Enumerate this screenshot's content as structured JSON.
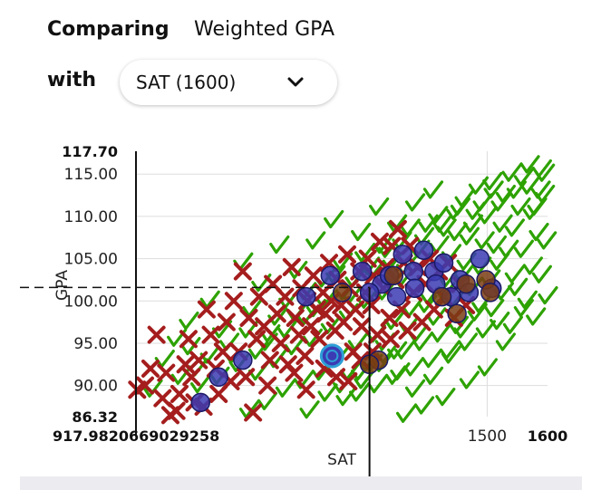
{
  "header": {
    "comparing_label": "Comparing",
    "metric_label": "Weighted GPA",
    "with_label": "with",
    "select_value": "SAT (1600)",
    "select_icon": "chevron-down-icon"
  },
  "chart_data": {
    "type": "scatter",
    "xlabel": "SAT",
    "ylabel": "GPA",
    "xlim": [
      917.9820669029258,
      1600
    ],
    "ylim": [
      86.32,
      117.7
    ],
    "x_edge_labels": [
      "917.9820669029258",
      "1600"
    ],
    "x_ticks": [
      "1500"
    ],
    "y_edge_labels": [
      "86.32",
      "117.70"
    ],
    "y_ticks": [
      "90.00",
      "95.00",
      "100.00",
      "105.00",
      "110.00",
      "115.00"
    ],
    "crosshair": {
      "x": 1305,
      "y": 101.6
    },
    "colors": {
      "accepted": "#2da200",
      "rejected": "#a51d1d",
      "waitlisted": "#3b3bb3",
      "other": "#7a3c14",
      "you": "#2e9fd6"
    },
    "rejected_points": [
      [
        920,
        89.5
      ],
      [
        933,
        90.0
      ],
      [
        942,
        92.0
      ],
      [
        952,
        96.0
      ],
      [
        962,
        88.5
      ],
      [
        968,
        91.5
      ],
      [
        975,
        86.5
      ],
      [
        985,
        87.0
      ],
      [
        990,
        89.0
      ],
      [
        1000,
        92.5
      ],
      [
        1005,
        95.5
      ],
      [
        1010,
        91.0
      ],
      [
        1015,
        88.0
      ],
      [
        1022,
        93.0
      ],
      [
        1030,
        87.5
      ],
      [
        1035,
        99.0
      ],
      [
        1042,
        96.0
      ],
      [
        1050,
        92.0
      ],
      [
        1055,
        89.0
      ],
      [
        1062,
        94.0
      ],
      [
        1068,
        97.5
      ],
      [
        1075,
        90.5
      ],
      [
        1080,
        100.0
      ],
      [
        1088,
        94.0
      ],
      [
        1095,
        103.5
      ],
      [
        1100,
        91.0
      ],
      [
        1105,
        98.0
      ],
      [
        1112,
        86.8
      ],
      [
        1118,
        95.5
      ],
      [
        1122,
        100.5
      ],
      [
        1130,
        97.0
      ],
      [
        1136,
        90.0
      ],
      [
        1140,
        93.0
      ],
      [
        1145,
        102.0
      ],
      [
        1152,
        98.5
      ],
      [
        1158,
        95.0
      ],
      [
        1165,
        100.5
      ],
      [
        1170,
        92.5
      ],
      [
        1176,
        104.0
      ],
      [
        1182,
        98.0
      ],
      [
        1188,
        96.0
      ],
      [
        1192,
        101.5
      ],
      [
        1198,
        93.5
      ],
      [
        1202,
        100.0
      ],
      [
        1208,
        97.0
      ],
      [
        1212,
        103.0
      ],
      [
        1218,
        99.0
      ],
      [
        1222,
        95.5
      ],
      [
        1228,
        101.0
      ],
      [
        1232,
        98.5
      ],
      [
        1238,
        104.5
      ],
      [
        1242,
        100.0
      ],
      [
        1248,
        96.5
      ],
      [
        1252,
        102.5
      ],
      [
        1258,
        99.5
      ],
      [
        1262,
        97.5
      ],
      [
        1268,
        105.5
      ],
      [
        1272,
        101.5
      ],
      [
        1278,
        94.0
      ],
      [
        1282,
        99.0
      ],
      [
        1288,
        103.5
      ],
      [
        1292,
        97.0
      ],
      [
        1298,
        101.0
      ],
      [
        1302,
        105.0
      ],
      [
        1308,
        99.5
      ],
      [
        1312,
        103.0
      ],
      [
        1318,
        96.0
      ],
      [
        1322,
        107.0
      ],
      [
        1328,
        101.5
      ],
      [
        1332,
        104.0
      ],
      [
        1338,
        98.0
      ],
      [
        1342,
        106.5
      ],
      [
        1348,
        102.5
      ],
      [
        1352,
        108.5
      ],
      [
        1358,
        99.0
      ],
      [
        1362,
        104.5
      ],
      [
        1368,
        96.5
      ],
      [
        1372,
        106.5
      ],
      [
        1378,
        101.0
      ],
      [
        1385,
        104.0
      ],
      [
        1392,
        97.5
      ],
      [
        1398,
        102.0
      ],
      [
        1405,
        105.0
      ],
      [
        1412,
        99.0
      ],
      [
        1420,
        103.5
      ],
      [
        1428,
        100.5
      ],
      [
        1435,
        104.5
      ],
      [
        1445,
        98.0
      ],
      [
        1455,
        102.0
      ],
      [
        1465,
        99.5
      ],
      [
        1250,
        91.0
      ],
      [
        1270,
        90.5
      ],
      [
        1230,
        92.0
      ],
      [
        1290,
        93.0
      ],
      [
        1310,
        94.0
      ],
      [
        1200,
        89.5
      ],
      [
        1340,
        95.5
      ],
      [
        1180,
        91.5
      ]
    ],
    "accepted_points": [
      [
        945,
        89.5
      ],
      [
        965,
        93.0
      ],
      [
        985,
        95.5
      ],
      [
        1005,
        97.5
      ],
      [
        1020,
        92.0
      ],
      [
        1040,
        100.0
      ],
      [
        1060,
        96.5
      ],
      [
        1080,
        93.5
      ],
      [
        1095,
        104.5
      ],
      [
        1110,
        99.0
      ],
      [
        1125,
        102.0
      ],
      [
        1140,
        96.0
      ],
      [
        1155,
        106.5
      ],
      [
        1170,
        100.0
      ],
      [
        1185,
        103.5
      ],
      [
        1200,
        98.0
      ],
      [
        1215,
        107.0
      ],
      [
        1230,
        102.5
      ],
      [
        1245,
        109.5
      ],
      [
        1260,
        104.5
      ],
      [
        1275,
        100.5
      ],
      [
        1290,
        108.0
      ],
      [
        1305,
        104.0
      ],
      [
        1320,
        111.0
      ],
      [
        1335,
        106.0
      ],
      [
        1350,
        109.0
      ],
      [
        1365,
        104.0
      ],
      [
        1380,
        111.5
      ],
      [
        1395,
        107.5
      ],
      [
        1410,
        113.0
      ],
      [
        1425,
        109.0
      ],
      [
        1440,
        105.5
      ],
      [
        1455,
        111.0
      ],
      [
        1470,
        107.5
      ],
      [
        1485,
        113.5
      ],
      [
        1500,
        110.0
      ],
      [
        1515,
        106.5
      ],
      [
        1530,
        112.5
      ],
      [
        1545,
        108.5
      ],
      [
        1560,
        114.5
      ],
      [
        1575,
        110.5
      ],
      [
        1590,
        115.5
      ],
      [
        1595,
        112.5
      ],
      [
        1585,
        108.0
      ],
      [
        1570,
        113.5
      ],
      [
        1555,
        111.0
      ],
      [
        1540,
        115.0
      ],
      [
        1525,
        109.0
      ],
      [
        1510,
        113.0
      ],
      [
        1495,
        107.0
      ],
      [
        1480,
        110.5
      ],
      [
        1465,
        104.5
      ],
      [
        1450,
        108.0
      ],
      [
        1435,
        102.5
      ],
      [
        1420,
        106.5
      ],
      [
        1405,
        100.5
      ],
      [
        1390,
        104.5
      ],
      [
        1375,
        99.0
      ],
      [
        1360,
        102.5
      ],
      [
        1345,
        97.5
      ],
      [
        1330,
        101.0
      ],
      [
        1315,
        96.0
      ],
      [
        1300,
        100.0
      ],
      [
        1285,
        95.0
      ],
      [
        1270,
        98.5
      ],
      [
        1255,
        93.5
      ],
      [
        1240,
        97.0
      ],
      [
        1225,
        91.5
      ],
      [
        1210,
        95.5
      ],
      [
        1195,
        90.5
      ],
      [
        1180,
        94.5
      ],
      [
        1165,
        89.5
      ],
      [
        1150,
        93.0
      ],
      [
        1135,
        88.0
      ],
      [
        1120,
        91.5
      ],
      [
        1105,
        87.0
      ],
      [
        1365,
        86.5
      ],
      [
        1395,
        87.5
      ],
      [
        1430,
        88.5
      ],
      [
        1470,
        90.5
      ],
      [
        1500,
        92.0
      ],
      [
        1530,
        95.0
      ],
      [
        1560,
        99.0
      ],
      [
        1590,
        103.0
      ],
      [
        1598,
        107.0
      ],
      [
        1600,
        100.5
      ],
      [
        1580,
        98.0
      ],
      [
        1550,
        101.5
      ],
      [
        1520,
        97.5
      ],
      [
        1490,
        99.5
      ],
      [
        1460,
        96.5
      ],
      [
        1440,
        93.5
      ],
      [
        1410,
        91.0
      ],
      [
        1380,
        89.5
      ],
      [
        1355,
        91.5
      ],
      [
        1325,
        92.5
      ],
      [
        1295,
        90.5
      ],
      [
        1265,
        88.5
      ],
      [
        1235,
        89.0
      ],
      [
        1205,
        87.0
      ],
      [
        1560,
        106.0
      ],
      [
        1575,
        104.0
      ],
      [
        1545,
        103.0
      ],
      [
        1535,
        106.0
      ],
      [
        1520,
        104.5
      ],
      [
        1505,
        102.5
      ],
      [
        1490,
        104.0
      ],
      [
        1475,
        101.5
      ],
      [
        1460,
        103.0
      ],
      [
        1445,
        100.0
      ],
      [
        1430,
        101.0
      ],
      [
        1415,
        98.0
      ],
      [
        1400,
        99.5
      ],
      [
        1385,
        96.0
      ],
      [
        1370,
        97.0
      ],
      [
        1350,
        94.0
      ],
      [
        1330,
        95.0
      ],
      [
        1310,
        92.5
      ],
      [
        1290,
        91.5
      ],
      [
        1260,
        90.0
      ],
      [
        1595,
        115.0
      ],
      [
        1588,
        113.0
      ],
      [
        1582,
        111.0
      ],
      [
        1570,
        116.0
      ],
      [
        1548,
        113.0
      ],
      [
        1522,
        111.5
      ],
      [
        1508,
        114.0
      ],
      [
        1492,
        111.5
      ],
      [
        1476,
        109.0
      ],
      [
        1462,
        112.0
      ],
      [
        1448,
        110.5
      ],
      [
        1432,
        108.5
      ],
      [
        1418,
        110.0
      ],
      [
        1402,
        109.0
      ],
      [
        1388,
        106.0
      ],
      [
        1372,
        108.5
      ],
      [
        1358,
        107.0
      ],
      [
        1342,
        104.5
      ],
      [
        1326,
        106.5
      ],
      [
        1312,
        103.5
      ],
      [
        1296,
        105.5
      ],
      [
        1280,
        102.5
      ],
      [
        1264,
        101.0
      ],
      [
        1248,
        103.0
      ],
      [
        1232,
        100.0
      ],
      [
        1216,
        99.0
      ],
      [
        1200,
        101.0
      ],
      [
        1184,
        98.5
      ],
      [
        1168,
        96.5
      ],
      [
        1152,
        98.0
      ],
      [
        1136,
        95.0
      ],
      [
        1120,
        94.0
      ],
      [
        1104,
        96.5
      ],
      [
        1088,
        92.5
      ],
      [
        1072,
        95.0
      ],
      [
        1056,
        91.0
      ],
      [
        1040,
        93.5
      ],
      [
        1024,
        90.0
      ],
      [
        1008,
        94.5
      ],
      [
        992,
        91.0
      ],
      [
        1542,
        97.0
      ],
      [
        1566,
        100.0
      ],
      [
        1527,
        101.0
      ],
      [
        1511,
        99.0
      ],
      [
        1497,
        96.5
      ],
      [
        1483,
        98.5
      ],
      [
        1467,
        95.0
      ],
      [
        1452,
        97.0
      ],
      [
        1437,
        94.0
      ],
      [
        1422,
        96.0
      ],
      [
        1407,
        93.0
      ],
      [
        1392,
        95.0
      ],
      [
        1377,
        92.0
      ],
      [
        1362,
        94.0
      ],
      [
        1347,
        91.0
      ],
      [
        1332,
        93.5
      ],
      [
        1317,
        90.0
      ],
      [
        1302,
        92.5
      ],
      [
        1287,
        89.0
      ],
      [
        1272,
        91.5
      ]
    ],
    "waitlisted_points": [
      [
        1325,
        102.0
      ],
      [
        1240,
        103.0
      ],
      [
        1360,
        105.5
      ],
      [
        1378,
        103.5
      ],
      [
        1395,
        106.0
      ],
      [
        1412,
        103.5
      ],
      [
        1428,
        104.5
      ],
      [
        1440,
        100.5
      ],
      [
        1455,
        102.5
      ],
      [
        1470,
        101.0
      ],
      [
        1380,
        101.5
      ],
      [
        1350,
        100.5
      ],
      [
        1293,
        103.5
      ],
      [
        1200,
        100.5
      ],
      [
        1095,
        93.0
      ],
      [
        1055,
        91.0
      ],
      [
        1025,
        88.0
      ],
      [
        1338,
        103.0
      ],
      [
        1415,
        102.0
      ],
      [
        1488,
        105.0
      ],
      [
        1508,
        101.5
      ],
      [
        1305,
        101.0
      ]
    ],
    "other_points": [
      [
        1260,
        101.0
      ],
      [
        1345,
        103.0
      ],
      [
        1425,
        100.5
      ],
      [
        1465,
        102.0
      ],
      [
        1498,
        102.5
      ],
      [
        1450,
        98.5
      ],
      [
        1320,
        93.0
      ],
      [
        1305,
        92.5
      ],
      [
        1505,
        101.0
      ]
    ],
    "you_point": [
      1243,
      93.5
    ]
  }
}
